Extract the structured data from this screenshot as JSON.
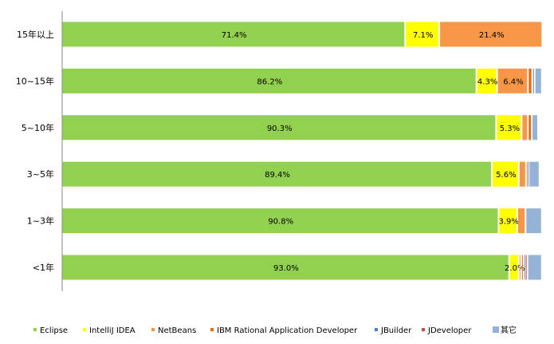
{
  "chart_data": {
    "type": "bar",
    "orientation": "horizontal",
    "stacked": "percent",
    "categories": [
      "15年以上",
      "10~15年",
      "5~10年",
      "3~5年",
      "1~3年",
      "<1年"
    ],
    "series": [
      {
        "name": "Eclipse",
        "color": "#92d050",
        "values": [
          71.4,
          86.2,
          90.3,
          89.4,
          90.8,
          93.0
        ],
        "labels": [
          "71.4%",
          "86.2%",
          "90.3%",
          "89.4%",
          "90.8%",
          "93.0%"
        ]
      },
      {
        "name": "IntelliJ IDEA",
        "color": "#ffff00",
        "values": [
          7.1,
          4.3,
          5.3,
          5.6,
          3.9,
          2.0
        ],
        "labels": [
          "7.1%",
          "4.3%",
          "5.3%",
          "5.6%",
          "3.9%",
          "2.0%"
        ]
      },
      {
        "name": "NetBeans",
        "color": "#f79646",
        "values": [
          21.4,
          6.4,
          1.3,
          1.5,
          1.7,
          0.5
        ],
        "labels": [
          "21.4%",
          "6.4%",
          "",
          "",
          "",
          ""
        ]
      },
      {
        "name": "IBM Rational Application Developer",
        "color": "#e46c0a",
        "values": [
          0,
          0.9,
          0.8,
          0.3,
          0,
          0.5
        ],
        "labels": [
          "",
          "",
          "",
          "",
          "",
          ""
        ]
      },
      {
        "name": "JBuilder",
        "color": "#4f81bd",
        "values": [
          0,
          0.5,
          0,
          0.3,
          0,
          0.3
        ],
        "labels": [
          "",
          "",
          "",
          "",
          "",
          ""
        ]
      },
      {
        "name": "JDeveloper",
        "color": "#c0504d",
        "values": [
          0,
          0,
          0,
          0,
          0,
          0.5
        ],
        "labels": [
          "",
          "",
          "",
          "",
          "",
          ""
        ]
      },
      {
        "name": "其它",
        "color": "#95b3d7",
        "values": [
          0,
          1.5,
          1.3,
          2.2,
          3.4,
          3.0
        ],
        "labels": [
          "",
          "",
          "",
          "",
          "",
          ""
        ]
      }
    ],
    "xlim": [
      0,
      100
    ],
    "grid": false,
    "legend": "bottom"
  }
}
